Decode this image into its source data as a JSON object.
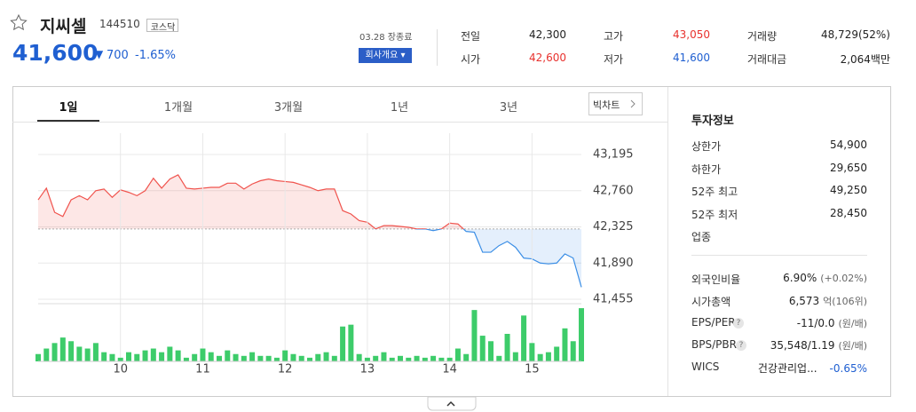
{
  "header": {
    "name": "지씨셀",
    "code": "144510",
    "market": "코스닥",
    "price": "41,600",
    "change": "700",
    "change_pct": "-1.65%",
    "status": "03.28 장종료",
    "company_button": "회사개요"
  },
  "quote": [
    [
      {
        "label": "전일",
        "value": "42,300"
      },
      {
        "label": "고가",
        "value": "43,050"
      },
      {
        "label": "거래량",
        "value": "48,729(52%)"
      }
    ],
    [
      {
        "label": "시가",
        "value": "42,600"
      },
      {
        "label": "저가",
        "value": "41,600"
      },
      {
        "label": "거래대금",
        "value": "2,064백만"
      }
    ]
  ],
  "tabs": [
    "1일",
    "1개월",
    "3개월",
    "1년",
    "3년"
  ],
  "big_chart": "빅차트",
  "invest": {
    "title": "투자정보",
    "limits": [
      {
        "label": "상한가",
        "value": "54,900"
      },
      {
        "label": "하한가",
        "value": "29,650"
      },
      {
        "label": "52주 최고",
        "value": "49,250"
      },
      {
        "label": "52주 최저",
        "value": "28,450"
      }
    ],
    "sector_label": "업종",
    "metrics": [
      {
        "label": "외국인비율",
        "value": "6.90%",
        "note": "(+0.02%)"
      },
      {
        "label": "시가총액",
        "value": "6,573",
        "note": "억(106위)"
      },
      {
        "label": "EPS/PER",
        "value": "-11/0.0",
        "note": "(원/배)"
      },
      {
        "label": "BPS/PBR",
        "value": "35,548/1.19",
        "note": "(원/배)"
      },
      {
        "label": "WICS",
        "value": "건강관리업...",
        "note": "-0.65%"
      }
    ]
  },
  "chart_data": [
    {
      "type": "line",
      "x": [
        9,
        9.1,
        9.2,
        9.3,
        9.4,
        9.5,
        9.6,
        9.7,
        9.8,
        9.9,
        10,
        10.1,
        10.2,
        10.3,
        10.4,
        10.5,
        10.6,
        10.7,
        10.8,
        10.9,
        11,
        11.1,
        11.2,
        11.3,
        11.4,
        11.5,
        11.6,
        11.7,
        11.8,
        11.9,
        12,
        12.1,
        12.2,
        12.3,
        12.4,
        12.5,
        12.6,
        12.7,
        12.8,
        12.9,
        13,
        13.1,
        13.2,
        13.3,
        13.4,
        13.5,
        13.6,
        13.7,
        13.8,
        13.9,
        14,
        14.1,
        14.2,
        14.3,
        14.4,
        14.5,
        14.6,
        14.7,
        14.8,
        14.9,
        15,
        15.1,
        15.2,
        15.3,
        15.4,
        15.5,
        15.6
      ],
      "values": [
        42650,
        42790,
        42500,
        42450,
        42650,
        42700,
        42650,
        42760,
        42780,
        42680,
        42770,
        42740,
        42700,
        42760,
        42910,
        42790,
        42900,
        42950,
        42790,
        42780,
        42790,
        42800,
        42800,
        42850,
        42850,
        42780,
        42840,
        42880,
        42900,
        42880,
        42870,
        42860,
        42830,
        42800,
        42760,
        42780,
        42780,
        42520,
        42480,
        42400,
        42380,
        42300,
        42340,
        42340,
        42330,
        42320,
        42300,
        42300,
        42280,
        42300,
        42370,
        42360,
        42270,
        42260,
        42020,
        42020,
        42100,
        42150,
        42080,
        41950,
        41940,
        41890,
        41880,
        41890,
        42000,
        41950,
        41600
      ],
      "xlim": [
        9,
        15.6
      ],
      "ylim": [
        41455,
        43195
      ],
      "yticks": [
        {
          "value": 43195,
          "label": "43,195"
        },
        {
          "value": 42760,
          "label": "42,760"
        },
        {
          "value": 42325,
          "label": "42,325"
        },
        {
          "value": 41890,
          "label": "41,890"
        },
        {
          "value": 41455,
          "label": "41,455"
        }
      ],
      "reference_line": 42300,
      "up_color": "#f0534d",
      "down_color": "#3b8ee6",
      "grid": true
    },
    {
      "type": "bar",
      "x": [
        9,
        9.1,
        9.2,
        9.3,
        9.4,
        9.5,
        9.6,
        9.7,
        9.8,
        9.9,
        10,
        10.1,
        10.2,
        10.3,
        10.4,
        10.5,
        10.6,
        10.7,
        10.8,
        10.9,
        11,
        11.1,
        11.2,
        11.3,
        11.4,
        11.5,
        11.6,
        11.7,
        11.8,
        11.9,
        12,
        12.1,
        12.2,
        12.3,
        12.4,
        12.5,
        12.6,
        12.7,
        12.8,
        12.9,
        13,
        13.1,
        13.2,
        13.3,
        13.4,
        13.5,
        13.6,
        13.7,
        13.8,
        13.9,
        14,
        14.1,
        14.2,
        14.3,
        14.4,
        14.5,
        14.6,
        14.7,
        14.8,
        14.9,
        15,
        15.1,
        15.2,
        15.3,
        15.4,
        15.5,
        15.6
      ],
      "values": [
        400,
        700,
        1000,
        1300,
        1100,
        800,
        700,
        1000,
        500,
        400,
        200,
        500,
        400,
        600,
        700,
        500,
        800,
        600,
        200,
        400,
        700,
        500,
        300,
        600,
        400,
        300,
        500,
        300,
        300,
        200,
        600,
        400,
        300,
        200,
        400,
        500,
        300,
        1900,
        2000,
        400,
        200,
        300,
        500,
        200,
        300,
        200,
        300,
        200,
        300,
        200,
        200,
        700,
        400,
        2800,
        1400,
        1100,
        300,
        1500,
        500,
        2500,
        1000,
        400,
        500,
        800,
        1800,
        1100,
        2900
      ],
      "xlim": [
        9,
        15.6
      ],
      "ylim": [
        0,
        3000
      ],
      "xticks": [
        10,
        11,
        12,
        13,
        14,
        15
      ],
      "color": "#3dcc6a",
      "grid": true
    }
  ]
}
